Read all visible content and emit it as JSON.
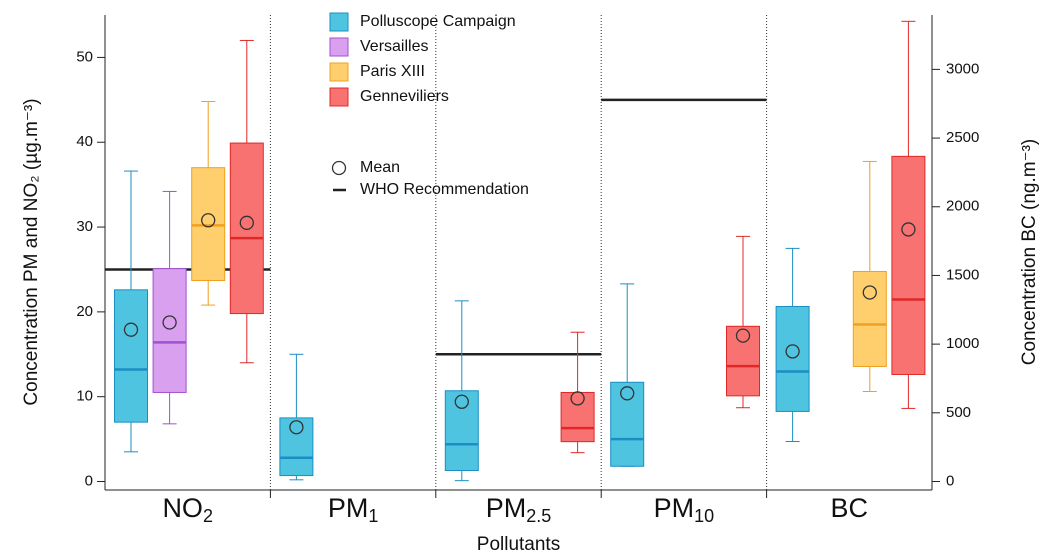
{
  "chart_data": {
    "type": "box",
    "x_label": "Pollutants",
    "y_label": "Concentration PM and NO₂ (µg.m⁻³)",
    "y2_label": "Concentration BC (ng.m⁻³)",
    "categories": [
      "NO2",
      "PM1",
      "PM2.5",
      "PM10",
      "BC"
    ],
    "y2_category_index": 4,
    "ylim": [
      -1,
      55
    ],
    "yticks": [
      0,
      10,
      20,
      30,
      40,
      50
    ],
    "y2lim": [
      -62,
      3396
    ],
    "y2ticks": [
      0,
      500,
      1000,
      1500,
      2000,
      2500,
      3000
    ],
    "mean_label": "Mean",
    "reference_label": "WHO Recommendation",
    "reference_values": [
      25,
      null,
      15,
      45,
      null
    ],
    "series": [
      {
        "name": "Polluscope Campaign",
        "color": "#4ec4e0",
        "edge_color": "#1a8fc4",
        "min": [
          3.5,
          0.2,
          0.1,
          1.8,
          291
        ],
        "q1": [
          7.0,
          0.7,
          1.3,
          1.8,
          510
        ],
        "median": [
          13.2,
          2.8,
          4.4,
          5.0,
          801
        ],
        "q3": [
          22.6,
          7.5,
          10.7,
          11.7,
          1274
        ],
        "max": [
          36.6,
          15.0,
          21.3,
          23.3,
          1697
        ],
        "mean": [
          17.9,
          6.4,
          9.4,
          10.4,
          947
        ]
      },
      {
        "name": "Versailles",
        "color": "#d9a0f0",
        "edge_color": "#a24fd0",
        "min": [
          6.8,
          null,
          null,
          null,
          null
        ],
        "q1": [
          10.5,
          null,
          null,
          null,
          null
        ],
        "median": [
          16.4,
          null,
          null,
          null,
          null
        ],
        "q3": [
          25.1,
          null,
          null,
          null,
          null
        ],
        "max": [
          34.2,
          null,
          null,
          null,
          null
        ],
        "mean": [
          18.75,
          null,
          null,
          null,
          null
        ]
      },
      {
        "name": "Paris XIII",
        "color": "#ffcf6e",
        "edge_color": "#f0a020",
        "min": [
          20.8,
          null,
          null,
          null,
          655
        ],
        "q1": [
          23.7,
          null,
          null,
          null,
          837
        ],
        "median": [
          30.2,
          null,
          null,
          null,
          1143
        ],
        "q3": [
          37.0,
          null,
          null,
          null,
          1529
        ],
        "max": [
          44.8,
          null,
          null,
          null,
          2330
        ],
        "mean": [
          30.8,
          null,
          null,
          null,
          1376
        ]
      },
      {
        "name": "Genneviliers",
        "color": "#f87272",
        "edge_color": "#e02828",
        "min": [
          14.0,
          null,
          3.4,
          8.7,
          532
        ],
        "q1": [
          19.8,
          null,
          4.7,
          10.1,
          779
        ],
        "median": [
          28.7,
          null,
          6.3,
          13.6,
          1325
        ],
        "q3": [
          39.9,
          null,
          10.5,
          18.3,
          2367
        ],
        "max": [
          52.0,
          null,
          17.6,
          28.9,
          3350
        ],
        "mean": [
          30.5,
          null,
          9.8,
          17.2,
          1835
        ]
      }
    ]
  }
}
